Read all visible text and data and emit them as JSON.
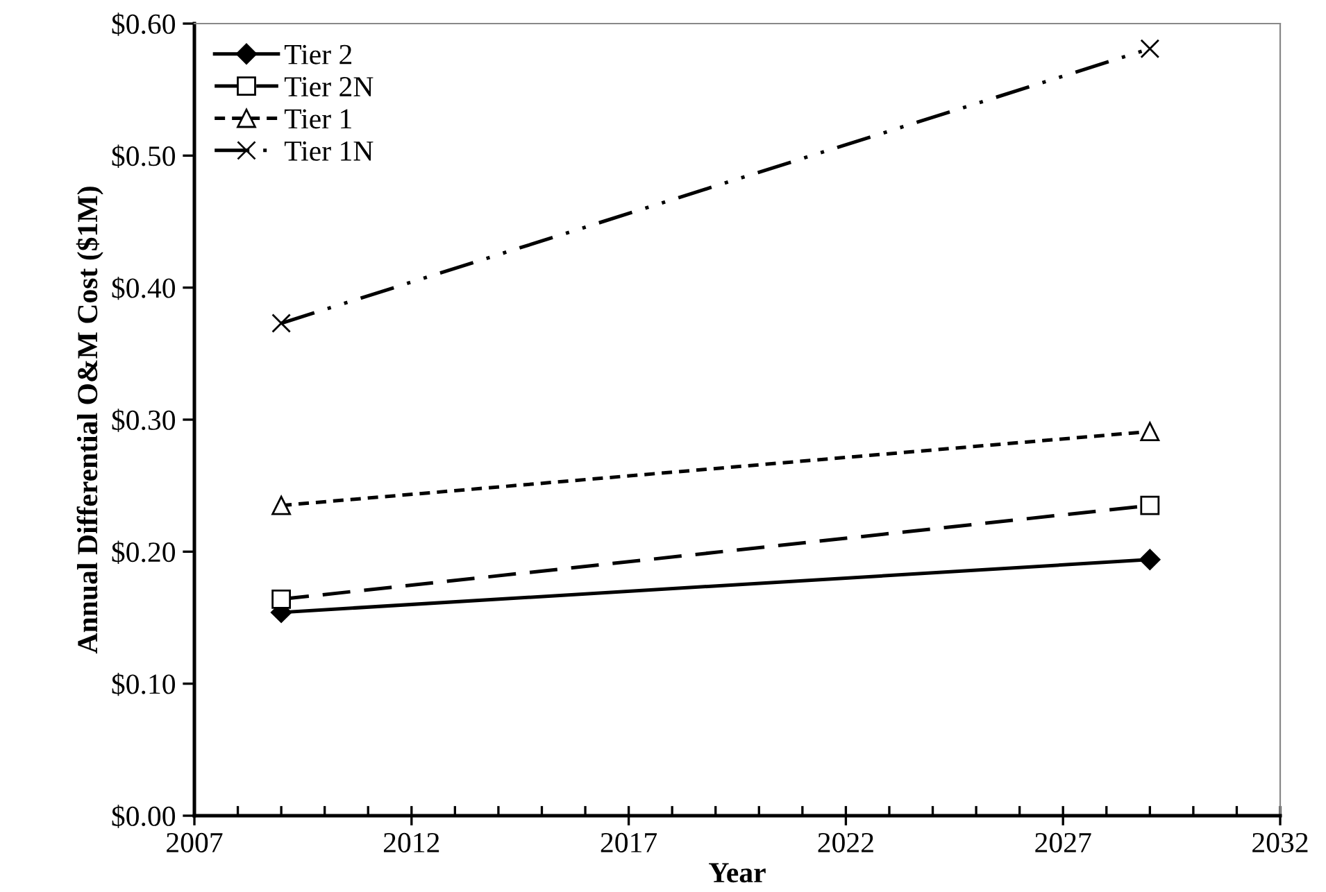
{
  "chart_data": {
    "type": "line",
    "xlabel": "Year",
    "ylabel": "Annual Differential O&M Cost ($1M)",
    "x": [
      2009,
      2029
    ],
    "series": [
      {
        "name": "Tier 2",
        "color": "#000000",
        "values": [
          0.154,
          0.194
        ],
        "marker": "diamond",
        "line_style": "solid"
      },
      {
        "name": "Tier 2N",
        "color": "#000000",
        "values": [
          0.164,
          0.235
        ],
        "marker": "square",
        "line_style": "dashed"
      },
      {
        "name": "Tier 1",
        "color": "#000000",
        "values": [
          0.235,
          0.291
        ],
        "marker": "triangle",
        "line_style": "dotted"
      },
      {
        "name": "Tier 1N",
        "color": "#000000",
        "values": [
          0.373,
          0.581
        ],
        "marker": "cross",
        "line_style": "dashdotdot"
      }
    ],
    "xlim": [
      2007,
      2032
    ],
    "xticks": [
      2007,
      2012,
      2017,
      2022,
      2027,
      2032
    ],
    "ylim": [
      0,
      0.6
    ],
    "yticks": [
      {
        "value": 0,
        "label": "$0.00"
      },
      {
        "value": 0.1,
        "label": "$0.10"
      },
      {
        "value": 0.2,
        "label": "$0.20"
      },
      {
        "value": 0.3,
        "label": "$0.30"
      },
      {
        "value": 0.4,
        "label": "$0.40"
      },
      {
        "value": 0.5,
        "label": "$0.50"
      },
      {
        "value": 0.6,
        "label": "$0.60"
      }
    ],
    "grid": false,
    "legend": "top left"
  }
}
